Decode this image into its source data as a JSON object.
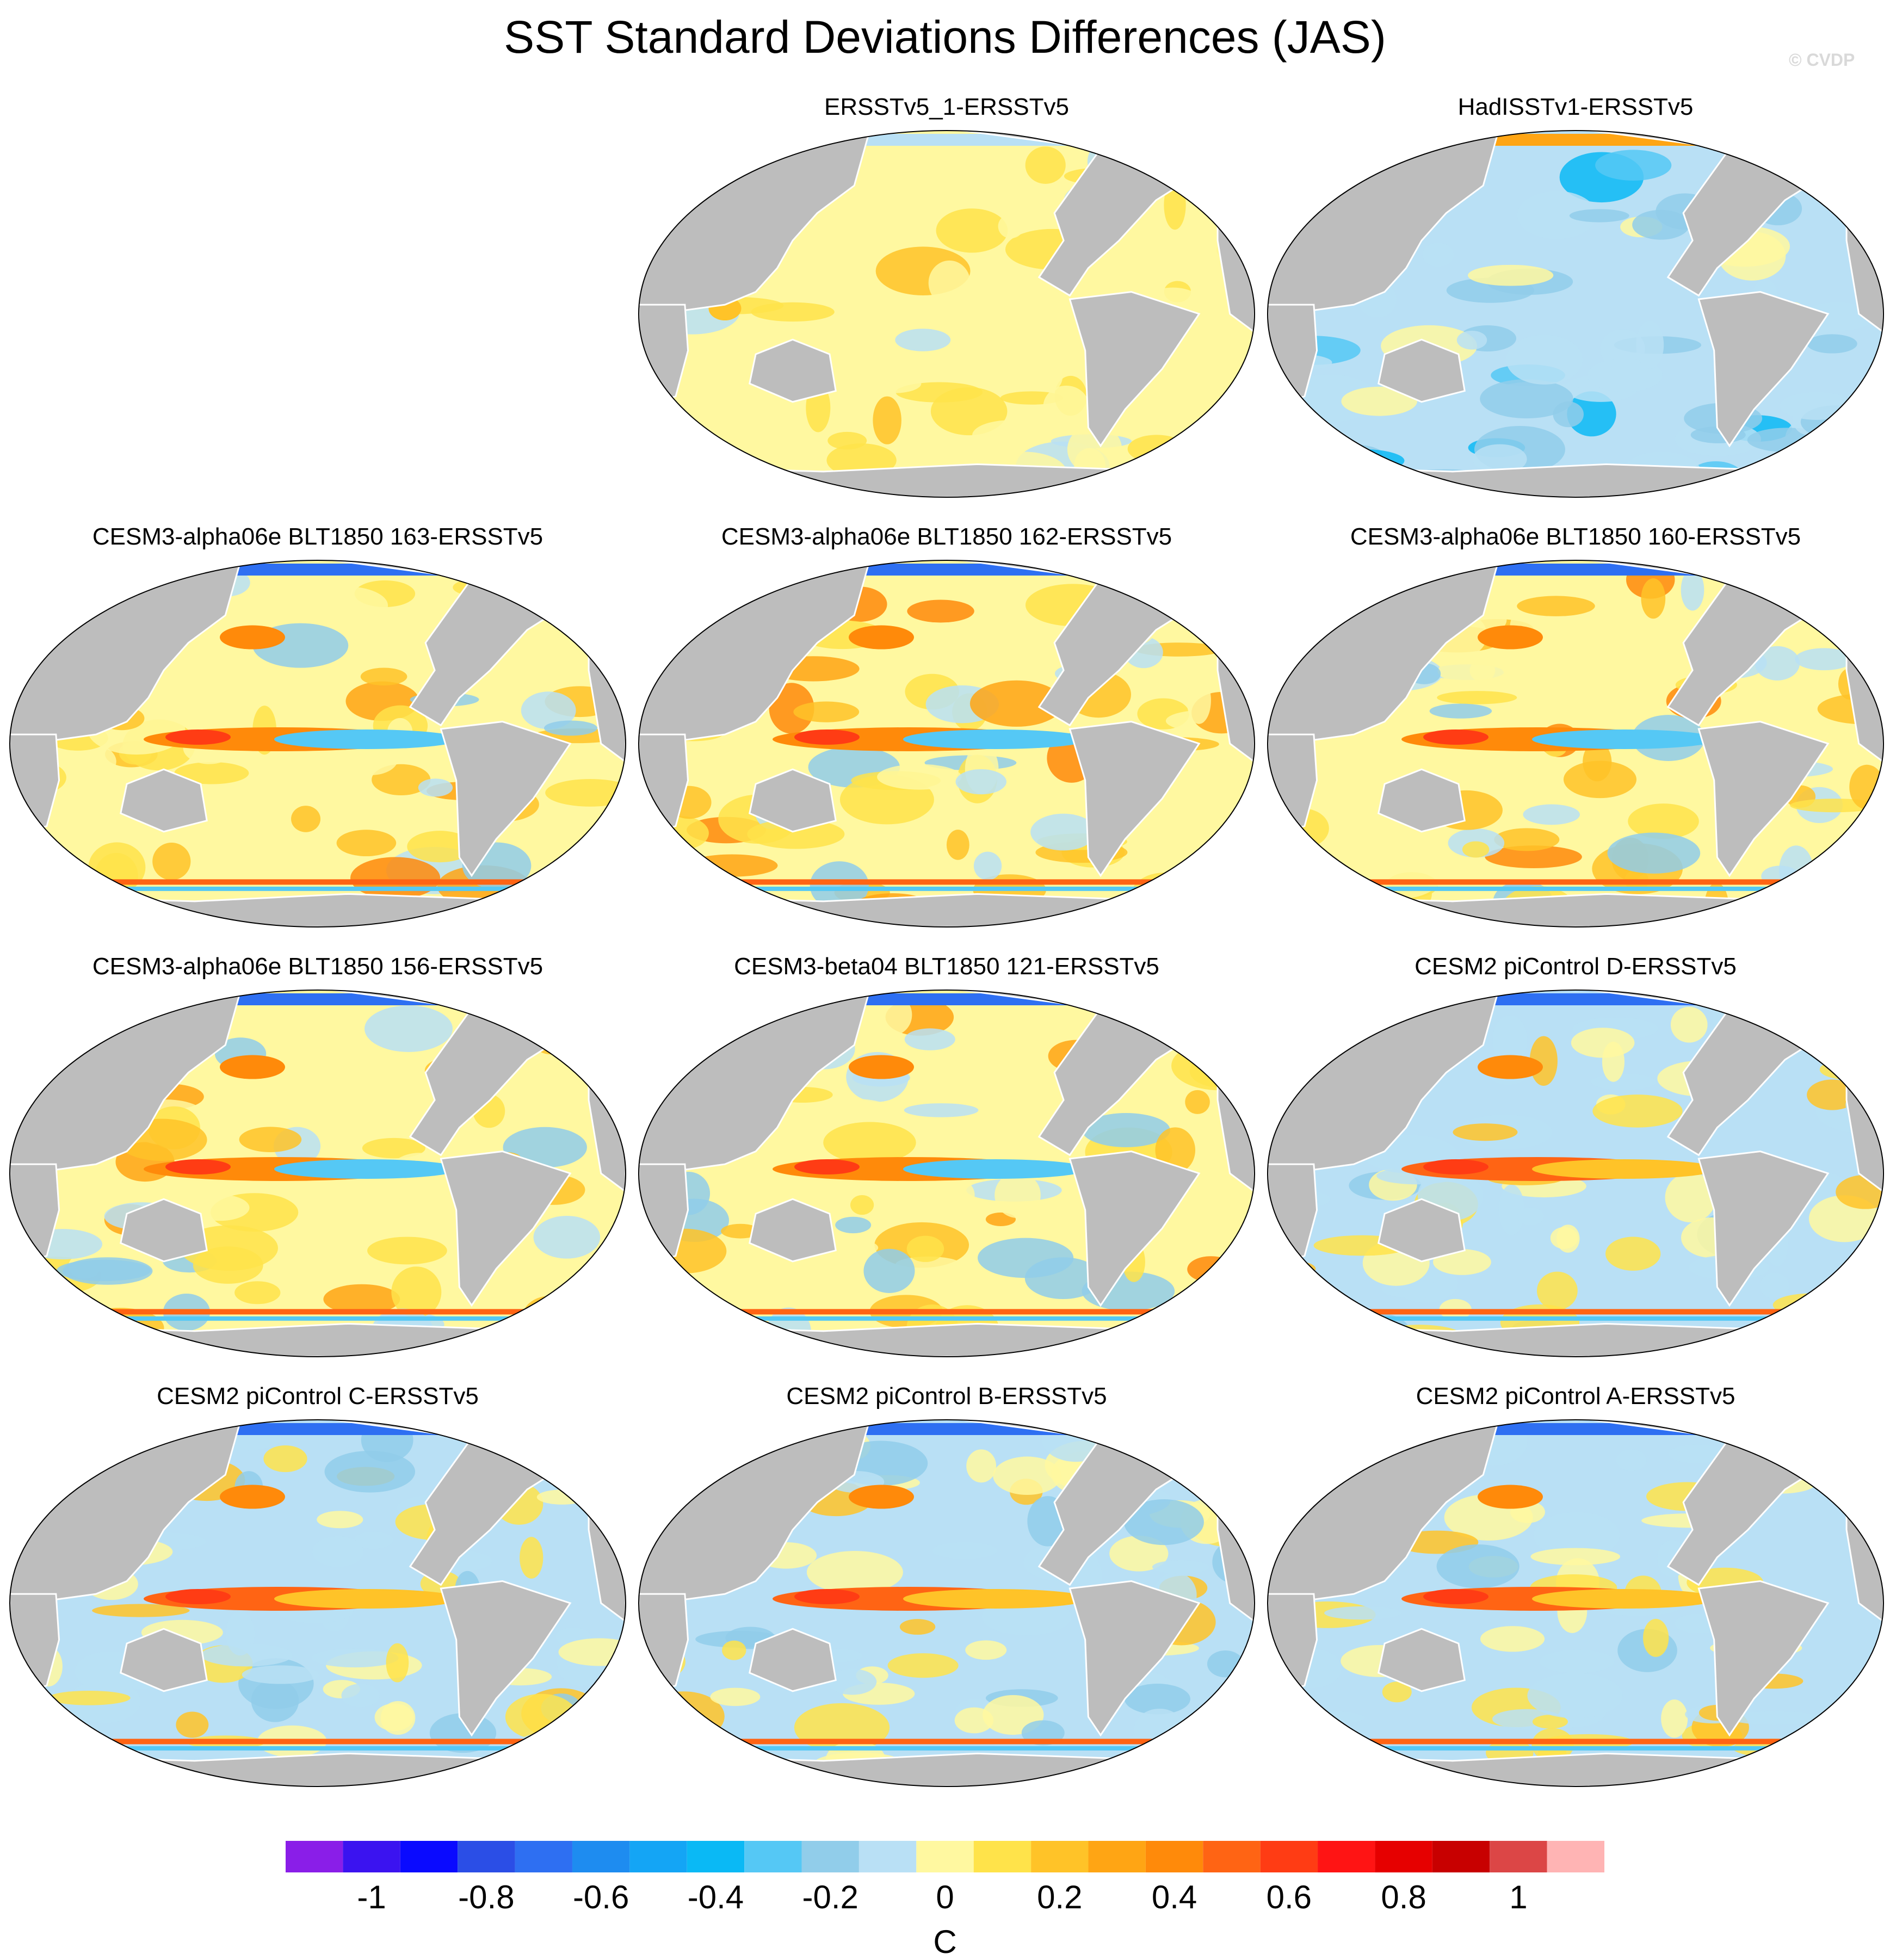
{
  "chart_data": {
    "type": "heatmap",
    "title": "SST Standard Deviations Differences (JAS)",
    "watermark": "© CVDP",
    "projection": "Robinson, Pacific-centered",
    "colorbar": {
      "unit": "C",
      "levels": [
        -1.1,
        -1.0,
        -0.9,
        -0.8,
        -0.7,
        -0.6,
        -0.5,
        -0.4,
        -0.3,
        -0.2,
        -0.1,
        0,
        0.1,
        0.2,
        0.3,
        0.4,
        0.5,
        0.6,
        0.7,
        0.8,
        0.9,
        1.0,
        1.1
      ],
      "colors": [
        "#8a1ee8",
        "#3b13f0",
        "#0a0aff",
        "#2b4ee6",
        "#2e6ff2",
        "#1e8cf0",
        "#14a5f5",
        "#0ab9f5",
        "#55c8f5",
        "#91cdea",
        "#b9e0f5",
        "#fff8a0",
        "#ffe34a",
        "#ffc328",
        "#ffa514",
        "#ff8a0a",
        "#ff6414",
        "#ff3c14",
        "#ff1414",
        "#e60000",
        "#c80000",
        "#dc4646",
        "#ffb4b4"
      ],
      "tick_labels": [
        "-1",
        "-0.8",
        "-0.6",
        "-0.4",
        "-0.2",
        "0",
        "0.2",
        "0.4",
        "0.6",
        "0.8",
        "1"
      ],
      "tick_values": [
        -1,
        -0.8,
        -0.6,
        -0.4,
        -0.2,
        0,
        0.2,
        0.4,
        0.6,
        0.8,
        1
      ]
    },
    "panels": [
      {
        "title": "ERSSTv5_1-ERSSTv5",
        "row": 0,
        "col": 1,
        "pattern": "yellow"
      },
      {
        "title": "HadISSTv1-ERSSTv5",
        "row": 0,
        "col": 2,
        "pattern": "blue"
      },
      {
        "title": "CESM3-alpha06e BLT1850 163-ERSSTv5",
        "row": 1,
        "col": 0,
        "pattern": "cesm3"
      },
      {
        "title": "CESM3-alpha06e BLT1850 162-ERSSTv5",
        "row": 1,
        "col": 1,
        "pattern": "cesm3"
      },
      {
        "title": "CESM3-alpha06e BLT1850 160-ERSSTv5",
        "row": 1,
        "col": 2,
        "pattern": "cesm3"
      },
      {
        "title": "CESM3-alpha06e BLT1850 156-ERSSTv5",
        "row": 2,
        "col": 0,
        "pattern": "cesm3"
      },
      {
        "title": "CESM3-beta04 BLT1850 121-ERSSTv5",
        "row": 2,
        "col": 1,
        "pattern": "cesm3"
      },
      {
        "title": "CESM2 piControl D-ERSSTv5",
        "row": 2,
        "col": 2,
        "pattern": "cesm2"
      },
      {
        "title": "CESM2 piControl C-ERSSTv5",
        "row": 3,
        "col": 0,
        "pattern": "cesm2"
      },
      {
        "title": "CESM2 piControl B-ERSSTv5",
        "row": 3,
        "col": 1,
        "pattern": "cesm2"
      },
      {
        "title": "CESM2 piControl A-ERSSTv5",
        "row": 3,
        "col": 2,
        "pattern": "cesm2"
      }
    ]
  }
}
